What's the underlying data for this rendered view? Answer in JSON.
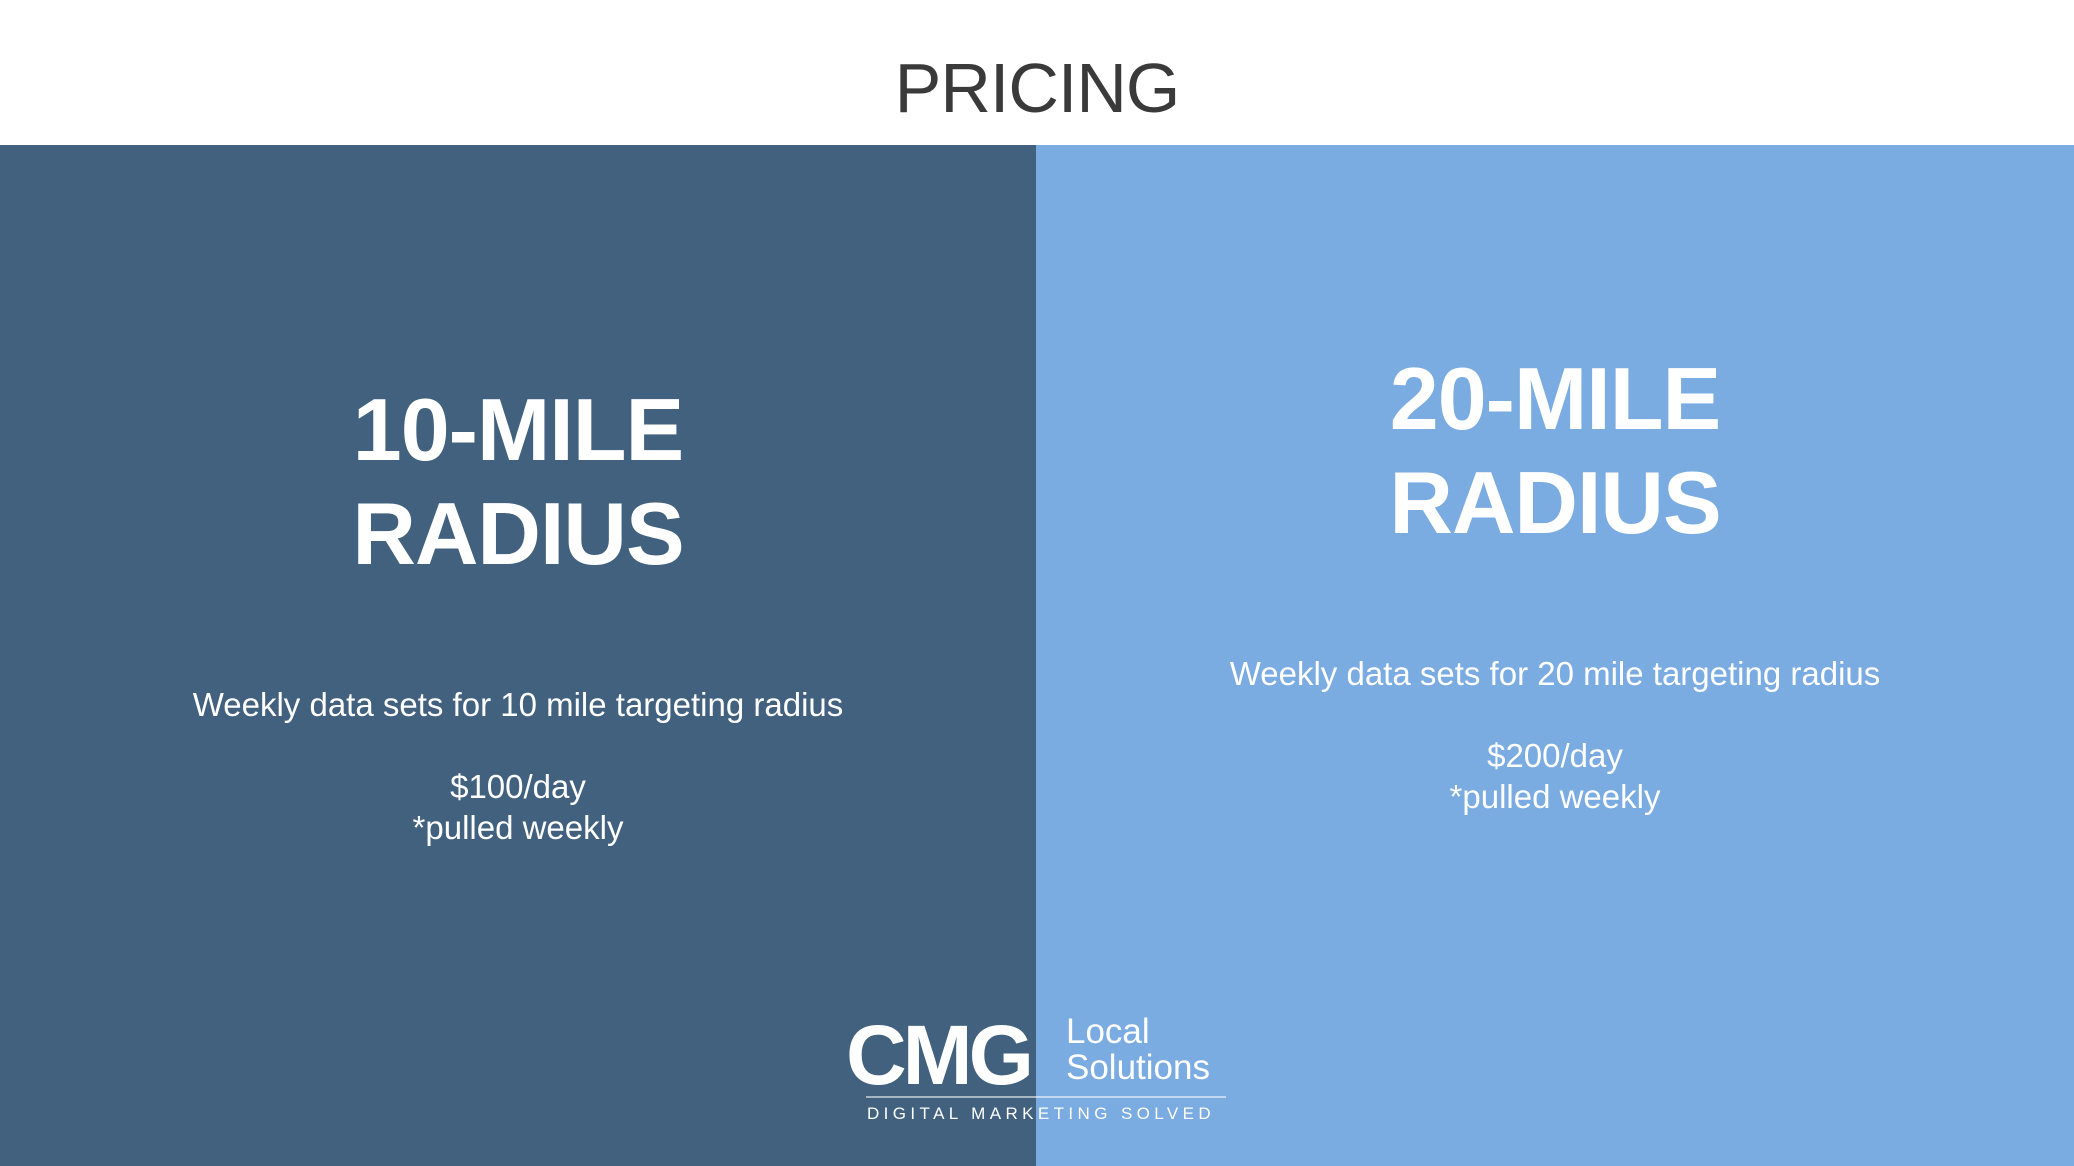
{
  "title": "PRICING",
  "colors": {
    "left_panel": "#41617f",
    "right_panel": "#7aabe1",
    "title_text": "#3a3a3a",
    "panel_text": "#ffffff"
  },
  "plans": [
    {
      "heading_line1": "10-MILE",
      "heading_line2": "RADIUS",
      "description": "Weekly data sets for 10 mile targeting radius",
      "price": "$100/day",
      "note": "*pulled weekly"
    },
    {
      "heading_line1": "20-MILE",
      "heading_line2": "RADIUS",
      "description": "Weekly data sets for 20 mile targeting radius",
      "price": "$200/day",
      "note": "*pulled weekly"
    }
  ],
  "logo": {
    "mark": "CMG",
    "word1": "Local",
    "word2": "Solutions",
    "tagline": "DIGITAL MARKETING SOLVED"
  }
}
